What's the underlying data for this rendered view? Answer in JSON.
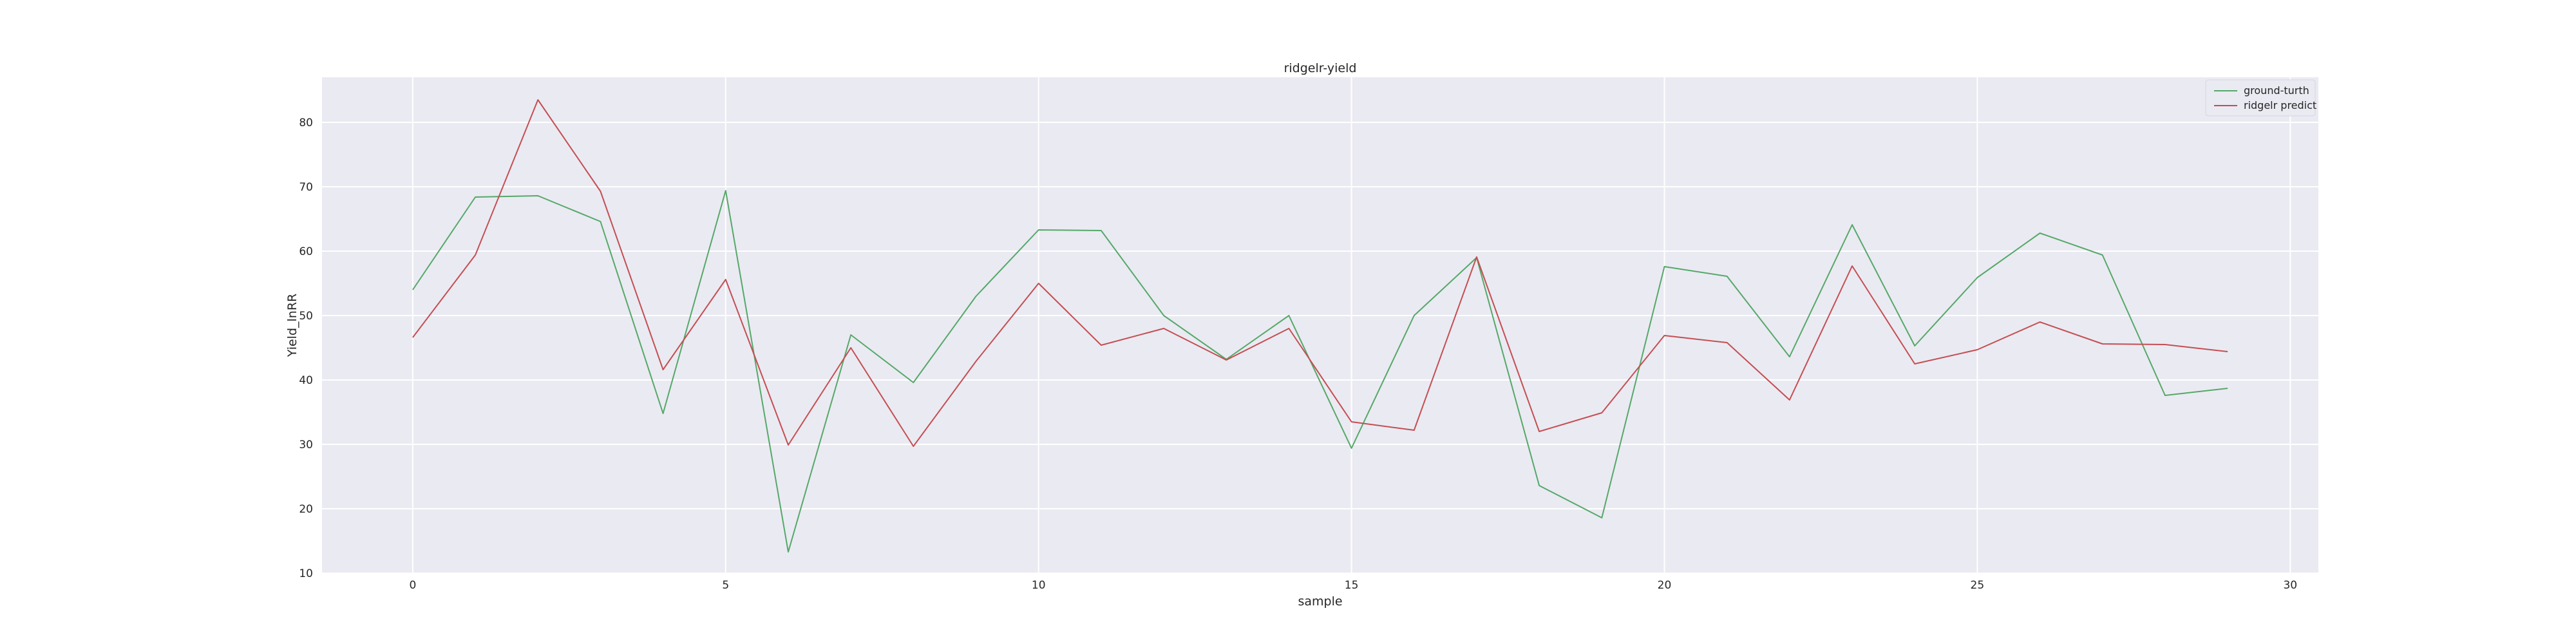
{
  "chart_data": {
    "type": "line",
    "title": "ridgelr-yield",
    "xlabel": "sample",
    "ylabel": "Yield_lnRR",
    "xlim": [
      -1.45,
      30.45
    ],
    "ylim": [
      10,
      87
    ],
    "xticks": [
      0,
      5,
      10,
      15,
      20,
      25,
      30
    ],
    "yticks": [
      10,
      20,
      30,
      40,
      50,
      60,
      70,
      80
    ],
    "grid": true,
    "legend_position": "top-right",
    "x": [
      0,
      1,
      2,
      3,
      4,
      5,
      6,
      7,
      8,
      9,
      10,
      11,
      12,
      13,
      14,
      15,
      16,
      17,
      18,
      19,
      20,
      21,
      22,
      23,
      24,
      25,
      26,
      27,
      28,
      29
    ],
    "series": [
      {
        "name": "ground-turth",
        "color": "#55a868",
        "values": [
          54,
          68.4,
          68.6,
          64.6,
          34.8,
          69.4,
          13.3,
          47.0,
          39.6,
          53.0,
          63.3,
          63.2,
          50.0,
          43.2,
          50.0,
          29.4,
          50.0,
          59.0,
          23.6,
          18.6,
          57.6,
          56.1,
          43.6,
          64.1,
          45.3,
          55.9,
          62.8,
          59.4,
          37.6,
          38.7
        ]
      },
      {
        "name": "ridgelr predict",
        "color": "#c44e52",
        "values": [
          46.6,
          59.4,
          83.5,
          69.3,
          41.6,
          55.6,
          29.9,
          45.0,
          29.7,
          42.9,
          55.0,
          45.4,
          48.0,
          43.1,
          48.0,
          33.5,
          32.2,
          59.1,
          32.0,
          34.9,
          46.9,
          45.8,
          36.9,
          57.7,
          42.5,
          44.7,
          49.0,
          45.6,
          45.5,
          44.4
        ]
      }
    ]
  }
}
